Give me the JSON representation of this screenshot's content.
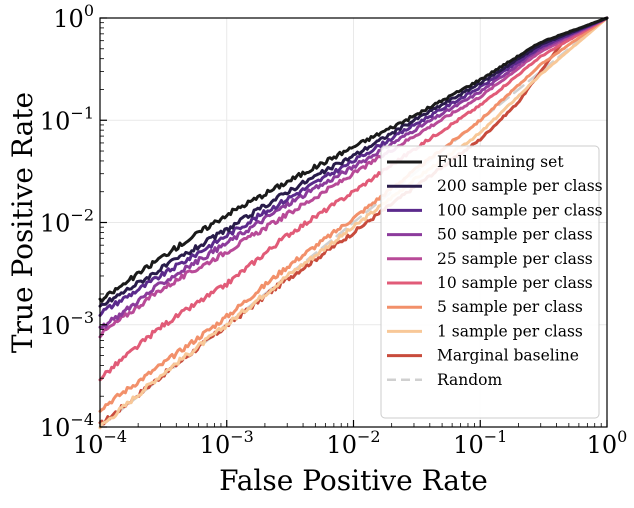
{
  "chart_data": {
    "type": "line",
    "title": "",
    "xlabel": "False Positive Rate",
    "ylabel": "True Positive Rate",
    "xscale": "log",
    "yscale": "log",
    "xlim": [
      0.0001,
      1
    ],
    "ylim": [
      0.0001,
      1
    ],
    "grid": true,
    "legend_position": "lower-right",
    "x_tick_labels": [
      {
        "base": "10",
        "exp": "−4"
      },
      {
        "base": "10",
        "exp": "−3"
      },
      {
        "base": "10",
        "exp": "−2"
      },
      {
        "base": "10",
        "exp": "−1"
      },
      {
        "base": "10",
        "exp": "0"
      }
    ],
    "y_tick_labels": [
      {
        "base": "10",
        "exp": "−4"
      },
      {
        "base": "10",
        "exp": "−3"
      },
      {
        "base": "10",
        "exp": "−2"
      },
      {
        "base": "10",
        "exp": "−1"
      },
      {
        "base": "10",
        "exp": "0"
      }
    ],
    "series": [
      {
        "name": "Full training set",
        "color": "#1a1a1a",
        "dashed": false,
        "x": [
          0.0001,
          0.0003,
          0.001,
          0.003,
          0.01,
          0.03,
          0.1,
          0.3,
          1
        ],
        "y": [
          0.0017,
          0.0045,
          0.012,
          0.025,
          0.055,
          0.11,
          0.25,
          0.58,
          1
        ]
      },
      {
        "name": "200 sample per class",
        "color": "#281b4a",
        "dashed": false,
        "x": [
          0.0001,
          0.0003,
          0.001,
          0.003,
          0.01,
          0.03,
          0.1,
          0.3,
          1
        ],
        "y": [
          0.0015,
          0.0035,
          0.0085,
          0.02,
          0.045,
          0.1,
          0.23,
          0.55,
          1
        ]
      },
      {
        "name": "100 sample per class",
        "color": "#5b2a8c",
        "dashed": false,
        "x": [
          0.0001,
          0.0003,
          0.001,
          0.003,
          0.01,
          0.03,
          0.1,
          0.3,
          1
        ],
        "y": [
          0.0013,
          0.003,
          0.0075,
          0.017,
          0.04,
          0.09,
          0.21,
          0.52,
          1
        ]
      },
      {
        "name": "50 sample per class",
        "color": "#8c3b9c",
        "dashed": false,
        "x": [
          0.0001,
          0.0003,
          0.001,
          0.003,
          0.01,
          0.03,
          0.1,
          0.3,
          1
        ],
        "y": [
          0.0009,
          0.0025,
          0.0063,
          0.015,
          0.035,
          0.08,
          0.19,
          0.5,
          1
        ]
      },
      {
        "name": "25 sample per class",
        "color": "#b84a98",
        "dashed": false,
        "x": [
          0.0001,
          0.0003,
          0.001,
          0.003,
          0.01,
          0.03,
          0.1,
          0.3,
          1
        ],
        "y": [
          0.0008,
          0.0022,
          0.0052,
          0.012,
          0.03,
          0.07,
          0.17,
          0.47,
          1
        ]
      },
      {
        "name": "10 sample per class",
        "color": "#e15b78",
        "dashed": false,
        "x": [
          0.0001,
          0.0003,
          0.001,
          0.003,
          0.01,
          0.03,
          0.1,
          0.3,
          1
        ],
        "y": [
          0.0003,
          0.00095,
          0.0025,
          0.0075,
          0.02,
          0.052,
          0.14,
          0.42,
          1
        ]
      },
      {
        "name": "5 sample per class",
        "color": "#f2906a",
        "dashed": false,
        "x": [
          0.0001,
          0.0003,
          0.001,
          0.003,
          0.01,
          0.03,
          0.1,
          0.3,
          1
        ],
        "y": [
          0.00015,
          0.0004,
          0.0012,
          0.0037,
          0.011,
          0.032,
          0.1,
          0.35,
          1
        ]
      },
      {
        "name": "1 sample per class",
        "color": "#f8c898",
        "dashed": false,
        "x": [
          0.0001,
          0.0003,
          0.001,
          0.003,
          0.01,
          0.03,
          0.1,
          0.3,
          1
        ],
        "y": [
          0.0001,
          0.00032,
          0.001,
          0.003,
          0.009,
          0.026,
          0.075,
          0.28,
          1
        ]
      },
      {
        "name": "Marginal baseline",
        "color": "#c84b3c",
        "dashed": false,
        "x": [
          0.0001,
          0.0003,
          0.001,
          0.003,
          0.01,
          0.03,
          0.1,
          0.2,
          0.3,
          0.5,
          1
        ],
        "y": [
          0.000105,
          0.00031,
          0.00098,
          0.0028,
          0.008,
          0.022,
          0.065,
          0.15,
          0.3,
          0.7,
          1
        ]
      },
      {
        "name": "Random",
        "color": "#d0d0d0",
        "dashed": true,
        "x": [
          0.0001,
          1
        ],
        "y": [
          0.0001,
          1
        ]
      }
    ]
  }
}
